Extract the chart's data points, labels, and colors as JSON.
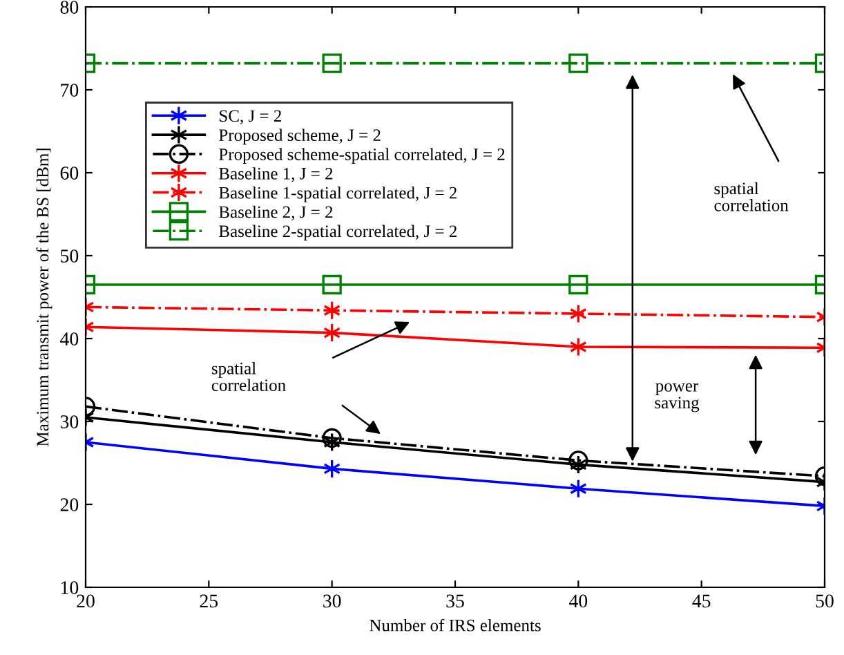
{
  "chart_data": {
    "type": "line",
    "xlabel": "Number of IRS elements",
    "ylabel": "Maximum transmit power of the BS [dBm]",
    "x": [
      20,
      30,
      40,
      50
    ],
    "series": [
      {
        "name": "SC, J = 2",
        "color": "#0000ff",
        "values": [
          27.5,
          24.3,
          21.9,
          19.8
        ],
        "marker": "cross",
        "line_style": "solid"
      },
      {
        "name": "Proposed scheme, J = 2",
        "color": "#000000",
        "values": [
          30.5,
          27.5,
          24.8,
          22.7
        ],
        "marker": "cross",
        "line_style": "solid"
      },
      {
        "name": "Proposed scheme-spatial correlated, J = 2",
        "color": "#000000",
        "values": [
          31.8,
          28.0,
          25.3,
          23.4
        ],
        "marker": "circle",
        "line_style": "dashdot"
      },
      {
        "name": "Baseline 1, J = 2",
        "color": "#ff0000",
        "values": [
          41.4,
          40.7,
          39.0,
          38.9
        ],
        "marker": "cross",
        "line_style": "solid"
      },
      {
        "name": "Baseline 1-spatial correlated, J = 2",
        "color": "#ff0000",
        "values": [
          43.8,
          43.4,
          43.0,
          42.6
        ],
        "marker": "cross",
        "line_style": "dashdot"
      },
      {
        "name": "Baseline 2, J = 2",
        "color": "#008000",
        "values": [
          46.5,
          46.5,
          46.5,
          46.5
        ],
        "marker": "square",
        "line_style": "solid"
      },
      {
        "name": "Baseline 2-spatial correlated, J = 2",
        "color": "#008000",
        "values": [
          73.2,
          73.2,
          73.2,
          73.2
        ],
        "marker": "square",
        "line_style": "dashdot"
      }
    ],
    "xlim": [
      20,
      50
    ],
    "ylim": [
      10,
      80
    ],
    "xticks": [
      20,
      25,
      30,
      35,
      40,
      45,
      50
    ],
    "yticks": [
      10,
      20,
      30,
      40,
      50,
      60,
      70,
      80
    ],
    "grid": false,
    "legend": "top left",
    "annotations": [
      "spatial correlation",
      "spatial correlation",
      "power saving"
    ]
  }
}
